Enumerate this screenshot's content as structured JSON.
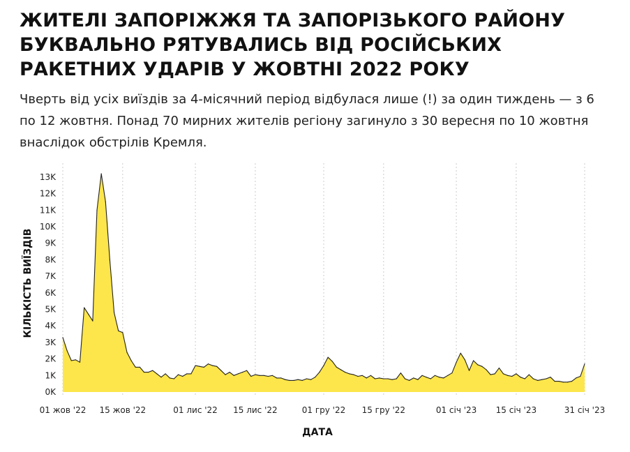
{
  "header": {
    "title": "ЖИТЕЛІ ЗАПОРІЖЖЯ ТА ЗАПОРІЗЬКОГО РАЙОНУ БУКВАЛЬНО РЯТУВАЛИСЬ ВІД РОСІЙСЬКИХ РАКЕТНИХ УДАРІВ У ЖОВТНІ 2022 РОКУ",
    "subtitle": "Чверть від усіх виїздів за 4-місячний період відбулася лише (!) за один тиждень — з 6 по 12 жовтня. Понад 70 мирних жителів регіону загинуло з 30 вересня по 10 жовтня внаслідок обстрілів Кремля."
  },
  "colors": {
    "fill": "#fde64b",
    "line": "#222222",
    "grid": "#cccccc"
  },
  "chart_data": {
    "type": "area",
    "title": "",
    "xlabel": "ДАТА",
    "ylabel": "КІЛЬКІСТЬ ВИЇЗДІВ",
    "x_start": "2022-10-01",
    "x_end": "2023-01-31",
    "ylim": [
      0,
      13500
    ],
    "grid": "vertical dashed",
    "y_ticks": [
      {
        "value": 0,
        "label": "0K"
      },
      {
        "value": 1000,
        "label": "1K"
      },
      {
        "value": 2000,
        "label": "2K"
      },
      {
        "value": 3000,
        "label": "3K"
      },
      {
        "value": 4000,
        "label": "4K"
      },
      {
        "value": 5000,
        "label": "5K"
      },
      {
        "value": 6000,
        "label": "6K"
      },
      {
        "value": 7000,
        "label": "7K"
      },
      {
        "value": 8000,
        "label": "8K"
      },
      {
        "value": 9000,
        "label": "9K"
      },
      {
        "value": 10000,
        "label": "10K"
      },
      {
        "value": 11000,
        "label": "11K"
      },
      {
        "value": 12000,
        "label": "12K"
      },
      {
        "value": 13000,
        "label": "13K"
      }
    ],
    "x_ticks": [
      {
        "date": "2022-10-01",
        "label": "01 жов '22"
      },
      {
        "date": "2022-10-15",
        "label": "15 жов '22"
      },
      {
        "date": "2022-11-01",
        "label": "01 лис '22"
      },
      {
        "date": "2022-11-15",
        "label": "15 лис '22"
      },
      {
        "date": "2022-12-01",
        "label": "01 гру '22"
      },
      {
        "date": "2022-12-15",
        "label": "15 гру '22"
      },
      {
        "date": "2023-01-01",
        "label": "01 січ '23"
      },
      {
        "date": "2023-01-15",
        "label": "15 січ '23"
      },
      {
        "date": "2023-01-31",
        "label": "31 січ '23"
      }
    ],
    "series": [
      {
        "points": [
          [
            "2022-10-01",
            3300
          ],
          [
            "2022-10-02",
            2500
          ],
          [
            "2022-10-03",
            1900
          ],
          [
            "2022-10-04",
            1950
          ],
          [
            "2022-10-05",
            1800
          ],
          [
            "2022-10-06",
            5100
          ],
          [
            "2022-10-07",
            4700
          ],
          [
            "2022-10-08",
            4300
          ],
          [
            "2022-10-09",
            11000
          ],
          [
            "2022-10-10",
            13200
          ],
          [
            "2022-10-11",
            11500
          ],
          [
            "2022-10-12",
            8000
          ],
          [
            "2022-10-13",
            4800
          ],
          [
            "2022-10-14",
            3700
          ],
          [
            "2022-10-15",
            3600
          ],
          [
            "2022-10-16",
            2400
          ],
          [
            "2022-10-17",
            1900
          ],
          [
            "2022-10-18",
            1500
          ],
          [
            "2022-10-19",
            1500
          ],
          [
            "2022-10-20",
            1200
          ],
          [
            "2022-10-21",
            1200
          ],
          [
            "2022-10-22",
            1300
          ],
          [
            "2022-10-23",
            1100
          ],
          [
            "2022-10-24",
            900
          ],
          [
            "2022-10-25",
            1100
          ],
          [
            "2022-10-26",
            850
          ],
          [
            "2022-10-27",
            800
          ],
          [
            "2022-10-28",
            1050
          ],
          [
            "2022-10-29",
            950
          ],
          [
            "2022-10-30",
            1100
          ],
          [
            "2022-10-31",
            1100
          ],
          [
            "2022-11-01",
            1600
          ],
          [
            "2022-11-02",
            1550
          ],
          [
            "2022-11-03",
            1500
          ],
          [
            "2022-11-04",
            1700
          ],
          [
            "2022-11-05",
            1600
          ],
          [
            "2022-11-06",
            1550
          ],
          [
            "2022-11-07",
            1300
          ],
          [
            "2022-11-08",
            1050
          ],
          [
            "2022-11-09",
            1200
          ],
          [
            "2022-11-10",
            1000
          ],
          [
            "2022-11-11",
            1100
          ],
          [
            "2022-11-12",
            1200
          ],
          [
            "2022-11-13",
            1300
          ],
          [
            "2022-11-14",
            950
          ],
          [
            "2022-11-15",
            1050
          ],
          [
            "2022-11-16",
            1000
          ],
          [
            "2022-11-17",
            1000
          ],
          [
            "2022-11-18",
            950
          ],
          [
            "2022-11-19",
            1000
          ],
          [
            "2022-11-20",
            850
          ],
          [
            "2022-11-21",
            850
          ],
          [
            "2022-11-22",
            750
          ],
          [
            "2022-11-23",
            700
          ],
          [
            "2022-11-24",
            700
          ],
          [
            "2022-11-25",
            750
          ],
          [
            "2022-11-26",
            700
          ],
          [
            "2022-11-27",
            800
          ],
          [
            "2022-11-28",
            750
          ],
          [
            "2022-11-29",
            900
          ],
          [
            "2022-11-30",
            1200
          ],
          [
            "2022-12-01",
            1600
          ],
          [
            "2022-12-02",
            2100
          ],
          [
            "2022-12-03",
            1850
          ],
          [
            "2022-12-04",
            1500
          ],
          [
            "2022-12-05",
            1350
          ],
          [
            "2022-12-06",
            1200
          ],
          [
            "2022-12-07",
            1100
          ],
          [
            "2022-12-08",
            1050
          ],
          [
            "2022-12-09",
            950
          ],
          [
            "2022-12-10",
            1000
          ],
          [
            "2022-12-11",
            850
          ],
          [
            "2022-12-12",
            1000
          ],
          [
            "2022-12-13",
            800
          ],
          [
            "2022-12-14",
            850
          ],
          [
            "2022-12-15",
            800
          ],
          [
            "2022-12-16",
            800
          ],
          [
            "2022-12-17",
            750
          ],
          [
            "2022-12-18",
            800
          ],
          [
            "2022-12-19",
            1150
          ],
          [
            "2022-12-20",
            800
          ],
          [
            "2022-12-21",
            700
          ],
          [
            "2022-12-22",
            850
          ],
          [
            "2022-12-23",
            750
          ],
          [
            "2022-12-24",
            1000
          ],
          [
            "2022-12-25",
            900
          ],
          [
            "2022-12-26",
            800
          ],
          [
            "2022-12-27",
            1000
          ],
          [
            "2022-12-28",
            900
          ],
          [
            "2022-12-29",
            850
          ],
          [
            "2022-12-30",
            1000
          ],
          [
            "2022-12-31",
            1150
          ],
          [
            "2023-01-01",
            1800
          ],
          [
            "2023-01-02",
            2350
          ],
          [
            "2023-01-03",
            1950
          ],
          [
            "2023-01-04",
            1300
          ],
          [
            "2023-01-05",
            1900
          ],
          [
            "2023-01-06",
            1650
          ],
          [
            "2023-01-07",
            1550
          ],
          [
            "2023-01-08",
            1350
          ],
          [
            "2023-01-09",
            1050
          ],
          [
            "2023-01-10",
            1100
          ],
          [
            "2023-01-11",
            1450
          ],
          [
            "2023-01-12",
            1100
          ],
          [
            "2023-01-13",
            1000
          ],
          [
            "2023-01-14",
            950
          ],
          [
            "2023-01-15",
            1100
          ],
          [
            "2023-01-16",
            900
          ],
          [
            "2023-01-17",
            800
          ],
          [
            "2023-01-18",
            1050
          ],
          [
            "2023-01-19",
            800
          ],
          [
            "2023-01-20",
            700
          ],
          [
            "2023-01-21",
            750
          ],
          [
            "2023-01-22",
            800
          ],
          [
            "2023-01-23",
            900
          ],
          [
            "2023-01-24",
            650
          ],
          [
            "2023-01-25",
            650
          ],
          [
            "2023-01-26",
            600
          ],
          [
            "2023-01-27",
            600
          ],
          [
            "2023-01-28",
            650
          ],
          [
            "2023-01-29",
            850
          ],
          [
            "2023-01-30",
            950
          ],
          [
            "2023-01-31",
            1700
          ]
        ]
      }
    ]
  }
}
